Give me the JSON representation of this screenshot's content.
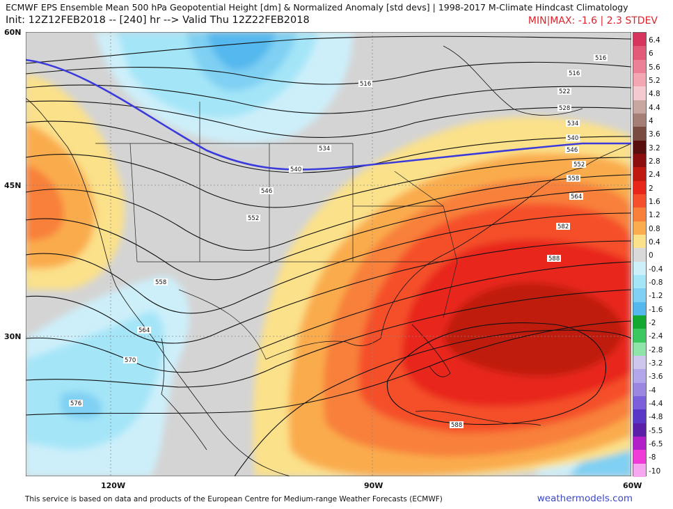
{
  "header": {
    "title": "ECMWF EPS Ensemble Mean 500 hPa Geopotential Height [dm] & Normalized Anomaly [std devs] | 1998-2017 M-Climate Hindcast Climatology",
    "init": "Init: 12Z12FEB2018 -- [240] hr --> Valid Thu 12Z22FEB2018",
    "minmax": "MIN|MAX: -1.6 | 2.3 STDEV"
  },
  "axes": {
    "lat_labels": [
      "60N",
      "45N",
      "30N"
    ],
    "lon_labels": [
      "120W",
      "90W",
      "60W"
    ]
  },
  "colorbar": {
    "labels": [
      "6.4",
      "6",
      "5.6",
      "5.2",
      "4.8",
      "4.4",
      "4",
      "3.6",
      "3.2",
      "2.8",
      "2.4",
      "2",
      "1.6",
      "1.2",
      "0.8",
      "0.4",
      "0",
      "-0.4",
      "-0.8",
      "-1.2",
      "-1.6",
      "-2",
      "-2.4",
      "-2.8",
      "-3.2",
      "-3.6",
      "-4",
      "-4.4",
      "-4.8",
      "-5.5",
      "-6.5",
      "-8",
      "-10"
    ],
    "colors": [
      "#d7355e",
      "#e25a77",
      "#ec8096",
      "#f2a7b3",
      "#f4c9cf",
      "#c9a7a1",
      "#a57f76",
      "#7a4c40",
      "#5a0f0f",
      "#8b0d0d",
      "#c01a10",
      "#e8261a",
      "#f5502c",
      "#f8803a",
      "#faac4e",
      "#fbe18a",
      "#d9d9d9",
      "#cdeffa",
      "#a4e5f8",
      "#7fd0f3",
      "#54b8ee",
      "#12a832",
      "#3cc860",
      "#8de3a8",
      "#cfc6ee",
      "#b4a6ea",
      "#9b86e2",
      "#7c5fdb",
      "#5b37c8",
      "#5a1fa6",
      "#b21fc9",
      "#f03bd8",
      "#f7a6f0"
    ]
  },
  "contours": {
    "labels": [
      "516",
      "516",
      "516",
      "522",
      "528",
      "534",
      "540",
      "546",
      "552",
      "558",
      "564",
      "570",
      "576",
      "582",
      "588",
      "534",
      "540",
      "546",
      "552",
      "558",
      "564",
      "570",
      "576",
      "588",
      "582",
      "576",
      "564"
    ]
  },
  "footer": {
    "credit": "This service is based on data and products of the European Centre for Medium-range Weather Forecasts (ECMWF)",
    "brand": "weathermodels.com"
  },
  "colors": {
    "accent_line": "#3b3bdc",
    "minmax_text": "#e0202a",
    "brand_text": "#3b47c8"
  }
}
